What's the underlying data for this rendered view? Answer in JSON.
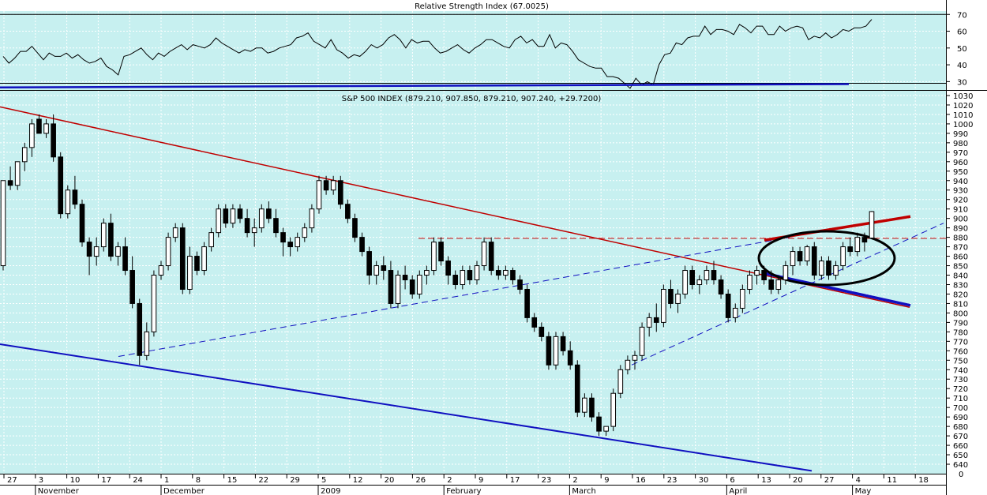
{
  "chart_data": [
    {
      "type": "line",
      "title": "Relative Strength Index (67.0025)",
      "ylim": [
        25,
        72
      ],
      "yticks": [
        30,
        40,
        50,
        60,
        70
      ],
      "reference_line": 70,
      "series": [
        {
          "values": [
            45,
            41,
            44,
            48,
            48,
            51,
            47,
            43,
            47,
            45,
            45,
            47,
            44,
            46,
            43,
            41,
            42,
            44,
            39,
            37,
            34,
            45,
            46,
            48,
            50,
            46,
            43,
            47,
            45,
            48,
            50,
            52,
            49,
            52,
            51,
            50,
            52,
            56,
            53,
            51,
            49,
            47,
            49,
            48,
            50,
            50,
            47,
            48,
            50,
            51,
            52,
            56,
            57,
            59,
            54,
            52,
            50,
            55,
            49,
            47,
            44,
            46,
            45,
            48,
            52,
            50,
            52,
            56,
            58,
            55,
            50,
            55,
            53,
            54,
            54,
            50,
            47,
            48,
            50,
            52,
            49,
            47,
            50,
            52,
            55,
            55,
            53,
            51,
            50,
            55,
            57,
            53,
            55,
            51,
            51,
            58,
            50,
            53,
            52,
            48,
            43,
            41,
            39,
            38,
            38,
            33,
            33,
            32,
            29,
            26,
            32,
            28,
            30,
            28,
            40,
            46,
            47,
            53,
            52,
            56,
            57,
            57,
            63,
            58,
            61,
            61,
            60,
            58,
            64,
            62,
            59,
            63,
            63,
            58,
            58,
            63,
            60,
            62,
            63,
            62,
            55,
            57,
            56,
            59,
            56,
            58,
            61,
            60,
            62,
            62,
            63,
            67
          ]
        }
      ]
    },
    {
      "type": "candlestick",
      "title": "S&P 500 INDEX (879.210, 907.850, 879.210, 907.240, +29.7200)",
      "ylim": [
        630,
        1035
      ],
      "yticks": [
        640,
        650,
        660,
        670,
        680,
        690,
        700,
        710,
        720,
        730,
        740,
        750,
        760,
        770,
        780,
        790,
        800,
        810,
        820,
        830,
        840,
        850,
        860,
        870,
        880,
        890,
        900,
        910,
        920,
        930,
        940,
        950,
        960,
        970,
        980,
        990,
        1000,
        1010,
        1020,
        1030
      ],
      "x_tick_labels": [
        "27",
        "3",
        "10",
        "17",
        "24",
        "1",
        "8",
        "15",
        "22",
        "29",
        "5",
        "12",
        "20",
        "26",
        "2",
        "9",
        "17",
        "23",
        "2",
        "9",
        "16",
        "23",
        "30",
        "6",
        "13",
        "20",
        "27",
        "4",
        "11",
        "18"
      ],
      "month_labels": [
        "November",
        "December",
        "2009",
        "February",
        "March",
        "April",
        "May"
      ],
      "candles": [
        [
          850,
          940,
          845,
          940
        ],
        [
          940,
          955,
          930,
          935
        ],
        [
          935,
          960,
          930,
          960
        ],
        [
          960,
          980,
          950,
          975
        ],
        [
          975,
          1005,
          965,
          1000
        ],
        [
          1005,
          1010,
          990,
          990
        ],
        [
          990,
          1005,
          985,
          1000
        ],
        [
          1000,
          1010,
          960,
          965
        ],
        [
          965,
          970,
          900,
          905
        ],
        [
          905,
          935,
          900,
          930
        ],
        [
          930,
          945,
          910,
          915
        ],
        [
          915,
          920,
          870,
          875
        ],
        [
          875,
          880,
          840,
          860
        ],
        [
          860,
          880,
          850,
          870
        ],
        [
          870,
          900,
          865,
          895
        ],
        [
          895,
          905,
          855,
          860
        ],
        [
          860,
          875,
          850,
          870
        ],
        [
          870,
          880,
          840,
          845
        ],
        [
          845,
          860,
          805,
          810
        ],
        [
          810,
          815,
          745,
          755
        ],
        [
          755,
          790,
          750,
          780
        ],
        [
          780,
          845,
          775,
          840
        ],
        [
          840,
          855,
          835,
          850
        ],
        [
          850,
          885,
          845,
          880
        ],
        [
          880,
          895,
          875,
          890
        ],
        [
          890,
          895,
          820,
          825
        ],
        [
          825,
          870,
          820,
          860
        ],
        [
          860,
          865,
          840,
          845
        ],
        [
          845,
          875,
          840,
          870
        ],
        [
          870,
          890,
          865,
          885
        ],
        [
          885,
          915,
          880,
          910
        ],
        [
          910,
          915,
          890,
          895
        ],
        [
          895,
          915,
          890,
          910
        ],
        [
          910,
          915,
          895,
          900
        ],
        [
          900,
          910,
          880,
          885
        ],
        [
          885,
          900,
          870,
          890
        ],
        [
          890,
          915,
          885,
          910
        ],
        [
          910,
          918,
          895,
          900
        ],
        [
          900,
          910,
          880,
          885
        ],
        [
          885,
          890,
          860,
          875
        ],
        [
          875,
          880,
          860,
          870
        ],
        [
          870,
          885,
          865,
          880
        ],
        [
          880,
          895,
          875,
          890
        ],
        [
          890,
          915,
          885,
          910
        ],
        [
          910,
          945,
          905,
          940
        ],
        [
          940,
          945,
          925,
          930
        ],
        [
          930,
          945,
          925,
          940
        ],
        [
          940,
          945,
          910,
          915
        ],
        [
          915,
          920,
          895,
          900
        ],
        [
          900,
          905,
          875,
          880
        ],
        [
          880,
          885,
          860,
          865
        ],
        [
          865,
          870,
          830,
          840
        ],
        [
          840,
          855,
          830,
          850
        ],
        [
          850,
          860,
          835,
          845
        ],
        [
          845,
          855,
          805,
          810
        ],
        [
          810,
          845,
          805,
          840
        ],
        [
          840,
          850,
          825,
          835
        ],
        [
          835,
          840,
          815,
          820
        ],
        [
          820,
          845,
          815,
          840
        ],
        [
          840,
          850,
          830,
          845
        ],
        [
          845,
          880,
          840,
          875
        ],
        [
          875,
          880,
          850,
          855
        ],
        [
          855,
          860,
          830,
          840
        ],
        [
          840,
          845,
          825,
          830
        ],
        [
          830,
          850,
          825,
          845
        ],
        [
          845,
          850,
          830,
          835
        ],
        [
          835,
          855,
          830,
          850
        ],
        [
          850,
          880,
          845,
          875
        ],
        [
          875,
          880,
          840,
          845
        ],
        [
          845,
          850,
          835,
          840
        ],
        [
          840,
          850,
          835,
          845
        ],
        [
          845,
          848,
          830,
          835
        ],
        [
          835,
          840,
          820,
          825
        ],
        [
          825,
          830,
          790,
          795
        ],
        [
          795,
          800,
          780,
          785
        ],
        [
          785,
          790,
          770,
          775
        ],
        [
          775,
          780,
          740,
          745
        ],
        [
          745,
          780,
          740,
          775
        ],
        [
          775,
          780,
          755,
          760
        ],
        [
          760,
          770,
          740,
          745
        ],
        [
          745,
          750,
          690,
          695
        ],
        [
          695,
          715,
          690,
          710
        ],
        [
          710,
          715,
          685,
          690
        ],
        [
          690,
          695,
          670,
          675
        ],
        [
          675,
          680,
          670,
          680
        ],
        [
          680,
          720,
          675,
          715
        ],
        [
          715,
          745,
          710,
          740
        ],
        [
          740,
          755,
          735,
          750
        ],
        [
          750,
          760,
          740,
          755
        ],
        [
          755,
          790,
          750,
          785
        ],
        [
          785,
          800,
          775,
          795
        ],
        [
          795,
          810,
          780,
          790
        ],
        [
          790,
          830,
          785,
          825
        ],
        [
          825,
          835,
          805,
          810
        ],
        [
          810,
          825,
          800,
          820
        ],
        [
          820,
          850,
          815,
          845
        ],
        [
          845,
          850,
          825,
          830
        ],
        [
          830,
          840,
          820,
          835
        ],
        [
          835,
          850,
          830,
          845
        ],
        [
          845,
          855,
          830,
          835
        ],
        [
          835,
          840,
          815,
          820
        ],
        [
          820,
          825,
          790,
          795
        ],
        [
          795,
          810,
          790,
          805
        ],
        [
          805,
          830,
          800,
          825
        ],
        [
          825,
          845,
          820,
          840
        ],
        [
          840,
          850,
          830,
          845
        ],
        [
          845,
          850,
          830,
          835
        ],
        [
          835,
          845,
          820,
          825
        ],
        [
          825,
          840,
          820,
          835
        ],
        [
          835,
          855,
          830,
          850
        ],
        [
          850,
          870,
          840,
          865
        ],
        [
          865,
          870,
          850,
          855
        ],
        [
          855,
          872,
          850,
          870
        ],
        [
          870,
          875,
          835,
          840
        ],
        [
          840,
          860,
          835,
          855
        ],
        [
          855,
          860,
          835,
          840
        ],
        [
          840,
          855,
          835,
          850
        ],
        [
          850,
          875,
          845,
          870
        ],
        [
          870,
          880,
          860,
          865
        ],
        [
          865,
          885,
          860,
          880
        ],
        [
          880,
          885,
          865,
          875
        ],
        [
          879.21,
          907.85,
          879.21,
          907.24
        ]
      ]
    }
  ],
  "annotations": {
    "colors": {
      "grid_background": "#c7f0f0",
      "candle_up": "#ffffff",
      "candle_down": "#000000",
      "downtrend_line": "#c00000",
      "lower_channel_line": "#1010c0",
      "dashed_support_line": "#1010c0",
      "resistance_dashed": "#c00000",
      "rsi_line": "#000000",
      "rsi_trend": "#1010c0",
      "ellipse": "#000000"
    }
  }
}
